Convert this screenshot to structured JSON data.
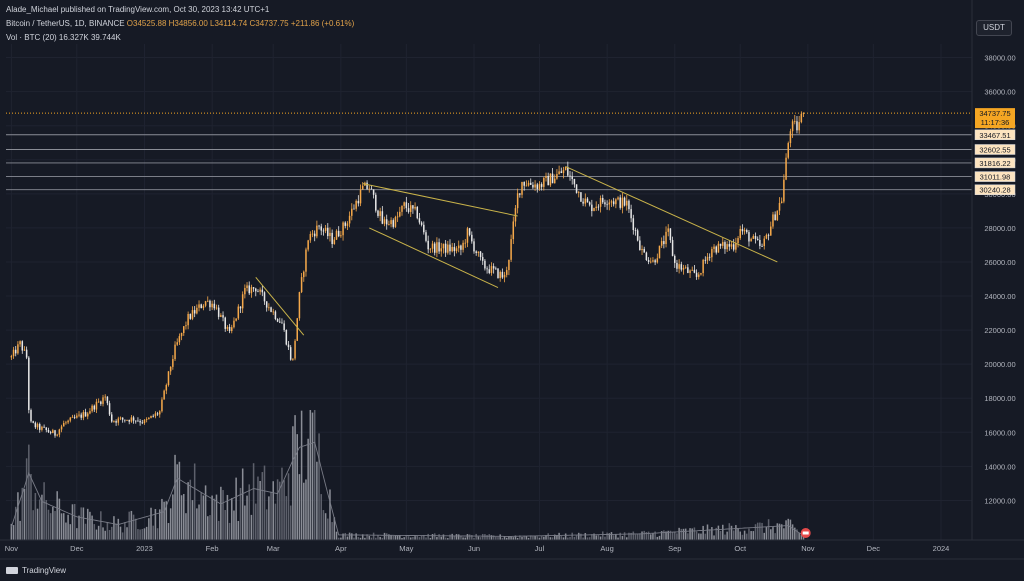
{
  "header": {
    "line1": "Alade_Michael published on TradingView.com, Oct 30, 2023 13:42 UTC+1",
    "symbol": "Bitcoin / TetherUS, 1D, BINANCE",
    "o": "O34525.88",
    "h": "H34856.00",
    "l": "L34114.74",
    "c": "C34737.75",
    "change": "+211.86 (+0.61%)",
    "vol_label": "Vol · BTC (20)",
    "vol_value": "16.327K",
    "vol_ma": "39.744K"
  },
  "currency_button": "USDT",
  "footer": {
    "brand": "TradingView"
  },
  "current_price": {
    "value": "34737.75",
    "countdown": "11:17:36"
  },
  "colors": {
    "background": "#161a25",
    "up": "#f5a84a",
    "down": "#e6e6e6",
    "trendline": "#c9b34a",
    "hline": "#8a8d96",
    "price_label_bg": "#fde4c0",
    "current_price": "#f5a623",
    "volume": "#9598a1"
  },
  "chart_data": {
    "type": "candlestick",
    "symbol": "BTCUSDT",
    "interval": "1D",
    "ylim": [
      10500,
      39500
    ],
    "y_ticks": [
      "38000.00",
      "36000.00",
      "34000.00",
      "32000.00",
      "30000.00",
      "28000.00",
      "26000.00",
      "24000.00",
      "22000.00",
      "20000.00",
      "18000.00",
      "16000.00",
      "14000.00",
      "12000.00"
    ],
    "x_ticks": [
      "Nov",
      "Dec",
      "2023",
      "Feb",
      "Mar",
      "Apr",
      "May",
      "Jun",
      "Jul",
      "Aug",
      "Sep",
      "Oct",
      "Nov",
      "Dec",
      "2024"
    ],
    "price_path": [
      [
        "2022-11-01",
        20400
      ],
      [
        "2022-11-05",
        21200
      ],
      [
        "2022-11-08",
        20400
      ],
      [
        "2022-11-09",
        17400
      ],
      [
        "2022-11-10",
        16500
      ],
      [
        "2022-11-13",
        16300
      ],
      [
        "2022-11-21",
        15900
      ],
      [
        "2022-11-25",
        16500
      ],
      [
        "2022-12-05",
        17100
      ],
      [
        "2022-12-14",
        18100
      ],
      [
        "2022-12-17",
        16700
      ],
      [
        "2022-12-27",
        16800
      ],
      [
        "2023-01-01",
        16600
      ],
      [
        "2023-01-08",
        17200
      ],
      [
        "2023-01-13",
        19900
      ],
      [
        "2023-01-15",
        20900
      ],
      [
        "2023-01-21",
        22700
      ],
      [
        "2023-01-29",
        23700
      ],
      [
        "2023-02-02",
        23500
      ],
      [
        "2023-02-09",
        21700
      ],
      [
        "2023-02-16",
        24300
      ],
      [
        "2023-02-21",
        24500
      ],
      [
        "2023-02-28",
        23200
      ],
      [
        "2023-03-05",
        22400
      ],
      [
        "2023-03-09",
        20400
      ],
      [
        "2023-03-10",
        20200
      ],
      [
        "2023-03-13",
        24000
      ],
      [
        "2023-03-17",
        27400
      ],
      [
        "2023-03-22",
        28100
      ],
      [
        "2023-03-28",
        27300
      ],
      [
        "2023-04-03",
        28200
      ],
      [
        "2023-04-11",
        30300
      ],
      [
        "2023-04-14",
        30400
      ],
      [
        "2023-04-20",
        28300
      ],
      [
        "2023-04-26",
        28400
      ],
      [
        "2023-04-30",
        29300
      ],
      [
        "2023-05-06",
        28800
      ],
      [
        "2023-05-11",
        26900
      ],
      [
        "2023-05-18",
        26800
      ],
      [
        "2023-05-26",
        26700
      ],
      [
        "2023-05-29",
        27700
      ],
      [
        "2023-06-05",
        25800
      ],
      [
        "2023-06-15",
        25100
      ],
      [
        "2023-06-17",
        26300
      ],
      [
        "2023-06-21",
        29900
      ],
      [
        "2023-06-23",
        30700
      ],
      [
        "2023-07-01",
        30500
      ],
      [
        "2023-07-13",
        31400
      ],
      [
        "2023-07-20",
        29900
      ],
      [
        "2023-07-24",
        29200
      ],
      [
        "2023-08-01",
        29700
      ],
      [
        "2023-08-10",
        29400
      ],
      [
        "2023-08-17",
        26600
      ],
      [
        "2023-08-22",
        26000
      ],
      [
        "2023-08-29",
        27700
      ],
      [
        "2023-09-01",
        25900
      ],
      [
        "2023-09-11",
        25100
      ],
      [
        "2023-09-18",
        26800
      ],
      [
        "2023-09-28",
        27000
      ],
      [
        "2023-10-01",
        27900
      ],
      [
        "2023-10-11",
        26800
      ],
      [
        "2023-10-16",
        28500
      ],
      [
        "2023-10-20",
        29700
      ],
      [
        "2023-10-23",
        33000
      ],
      [
        "2023-10-24",
        33900
      ],
      [
        "2023-10-27",
        33900
      ],
      [
        "2023-10-30",
        34737.75
      ]
    ],
    "volume_max_btc": 480000,
    "volume_path_btc": [
      [
        "2022-11-01",
        50000
      ],
      [
        "2022-11-09",
        260000
      ],
      [
        "2022-11-15",
        150000
      ],
      [
        "2022-12-01",
        90000
      ],
      [
        "2022-12-20",
        60000
      ],
      [
        "2023-01-10",
        110000
      ],
      [
        "2023-01-16",
        240000
      ],
      [
        "2023-02-05",
        140000
      ],
      [
        "2023-02-20",
        200000
      ],
      [
        "2023-03-03",
        180000
      ],
      [
        "2023-03-10",
        310000
      ],
      [
        "2023-03-13",
        360000
      ],
      [
        "2023-03-20",
        380000
      ],
      [
        "2023-03-26",
        180000
      ],
      [
        "2023-03-31",
        20000
      ],
      [
        "2023-06-17",
        14000
      ],
      [
        "2023-08-17",
        24000
      ],
      [
        "2023-10-23",
        56000
      ],
      [
        "2023-10-30",
        16327
      ]
    ],
    "horizontal_levels": [
      "33467.51",
      "32602.55",
      "31816.22",
      "31011.98",
      "30240.28"
    ],
    "trendlines": [
      {
        "name": "feb-mar-downtrend",
        "from": [
          "2023-02-21",
          25100
        ],
        "to": [
          "2023-03-15",
          21700
        ]
      },
      {
        "name": "apr-jun-channel-top",
        "from": [
          "2023-04-11",
          30600
        ],
        "to": [
          "2023-06-21",
          28700
        ]
      },
      {
        "name": "apr-jun-channel-bottom",
        "from": [
          "2023-04-14",
          28000
        ],
        "to": [
          "2023-06-12",
          24500
        ]
      },
      {
        "name": "jul-oct-downtrend",
        "from": [
          "2023-07-13",
          31600
        ],
        "to": [
          "2023-10-18",
          26000
        ]
      }
    ]
  }
}
